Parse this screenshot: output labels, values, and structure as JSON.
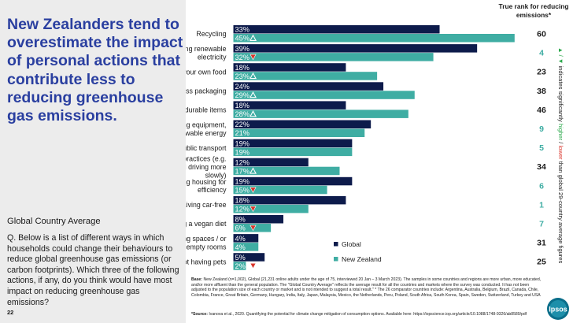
{
  "headline": "New Zealanders tend to overestimate the impact of personal actions that contribute less to reducing greenhouse gas emissions.",
  "subtitle": "Global Country Average",
  "question": "Q. Below is a list of different ways in which households could change their behaviours to reduce global greenhouse gas emissions (or carbon footprints). Which three of the following actions, if any, do you think would have most impact on reducing greenhouse gas emissions?",
  "page_number": "22",
  "rank_header": "True rank for reducing emissions*",
  "side_note": {
    "arrows": "▲ / ▼",
    "prefix": "indicates significantly",
    "higher": "higher",
    "sep": " / ",
    "lower": "lower",
    "suffix": "than global 29-country average figures"
  },
  "footnote": {
    "base_label": "Base:",
    "base_text": "New Zealand (n=1,002), Global (21,231 online adults under the age of 75, interviewed 20 Jan – 3 March 2023). The samples in some countries and regions are more urban, more educated, and/or more affluent than the general population. The \"Global Country Average\" reflects the average result for all the countries and markets where the survey was conducted. It has not been adjusted to the population size of each country or market and is not intended to suggest a total result.\" * The 26 comparator countries include: Argentina, Australia, Belgium, Brazil, Canada, Chile, Colombia, France, Great Britain, Germany, Hungary, India, Italy, Japan, Malaysia, Mexico, the Netherlands, Peru, Poland, South Africa, South Korea, Spain, Sweden, Switzerland, Turkey and USA",
    "source_label": "*Source:",
    "source_text": "Ivanova et al., 2020. Quantifying the potential for climate change mitigation of consumption options. Available here: https://iopscience.iop.org/article/10.1088/1748-9326/ab8589/pdf"
  },
  "logo_text": "Ipsos",
  "colors": {
    "global": "#0d1b4b",
    "new_zealand": "#3fada3",
    "headline": "#2a3fa0",
    "higher": "#2aa84a",
    "lower": "#d9352b",
    "panel": "#ececec"
  },
  "chart_data": {
    "type": "bar",
    "orientation": "horizontal",
    "categories": [
      "Recycling",
      "Switching to purchasing renewable electricity",
      "Growing or producing your own food",
      "Less packaging",
      "Buying fewer items, or more durable items",
      "More energy efficient cooking equipment, using cleaner fuel or renewable energy",
      "Shift to public transport",
      "Fuel efficient driving practices (e.g. using the correct gear, and driving more slowly)",
      "Refurbishing and renovating housing for efficiency",
      "Living car-free",
      "Having a vegan diet",
      "Having smaller living spaces / or co-housing to fill empty rooms",
      "Not having pets"
    ],
    "series": [
      {
        "name": "Global",
        "values": [
          33,
          39,
          18,
          24,
          18,
          22,
          19,
          12,
          19,
          18,
          8,
          4,
          5
        ],
        "labels": [
          "33%",
          "39%",
          "18%",
          "24%",
          "18%",
          "22%",
          "19%",
          "12%",
          "19%",
          "18%",
          "8%",
          "4%",
          "5%"
        ]
      },
      {
        "name": "New Zealand",
        "values": [
          45,
          32,
          23,
          29,
          28,
          21,
          19,
          17,
          15,
          12,
          6,
          4,
          2
        ],
        "labels": [
          "45%",
          "32%",
          "23%",
          "29%",
          "28%",
          "21%",
          "19%",
          "17%",
          "15%",
          "12%",
          "6%",
          "4%",
          "2%"
        ],
        "significance": [
          "higher",
          "lower",
          "higher",
          "higher",
          "higher",
          "",
          "",
          "higher",
          "lower",
          "lower",
          "lower",
          "",
          "lower"
        ]
      }
    ],
    "true_rank": [
      "60",
      "4",
      "23",
      "38",
      "46",
      "9",
      "5",
      "34",
      "6",
      "1",
      "7",
      "31",
      "25"
    ],
    "xlim": [
      0,
      50
    ],
    "legend": "bottom-right",
    "grid": false
  }
}
